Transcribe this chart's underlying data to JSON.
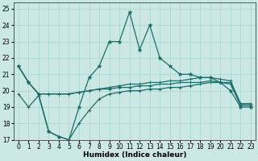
{
  "xlabel": "Humidex (Indice chaleur)",
  "bg_color": "#cce8e5",
  "grid_color": "#aad8d3",
  "line_color": "#1a6e6a",
  "xlim": [
    -0.5,
    23.5
  ],
  "ylim": [
    17,
    25.4
  ],
  "yticks": [
    17,
    18,
    19,
    20,
    21,
    22,
    23,
    24,
    25
  ],
  "xticks": [
    0,
    1,
    2,
    3,
    4,
    5,
    6,
    7,
    8,
    9,
    10,
    11,
    12,
    13,
    14,
    15,
    16,
    17,
    18,
    19,
    20,
    21,
    22,
    23
  ],
  "line_wave_y": [
    21.5,
    20.5,
    19.8,
    17.5,
    17.2,
    17.0,
    19.0,
    20.8,
    21.5,
    23.0,
    23.0,
    24.8,
    22.5,
    24.0,
    22.0,
    21.5,
    21.0,
    21.0,
    20.8,
    20.8,
    20.5,
    20.0,
    19.0,
    19.0
  ],
  "line_upper_y": [
    21.5,
    20.5,
    19.8,
    19.8,
    19.8,
    19.8,
    19.9,
    20.0,
    20.1,
    20.2,
    20.3,
    20.4,
    20.4,
    20.5,
    20.5,
    20.6,
    20.6,
    20.7,
    20.8,
    20.8,
    20.7,
    20.6,
    19.2,
    19.2
  ],
  "line_mid_y": [
    21.5,
    20.5,
    19.8,
    19.8,
    19.8,
    19.8,
    19.9,
    20.0,
    20.1,
    20.1,
    20.2,
    20.2,
    20.3,
    20.3,
    20.4,
    20.4,
    20.5,
    20.5,
    20.5,
    20.6,
    20.5,
    20.4,
    19.1,
    19.1
  ],
  "line_lower_y": [
    19.8,
    19.0,
    19.7,
    17.5,
    17.2,
    17.0,
    18.0,
    18.8,
    19.5,
    19.8,
    19.9,
    20.0,
    20.0,
    20.1,
    20.1,
    20.2,
    20.2,
    20.3,
    20.4,
    20.5,
    20.5,
    20.5,
    19.2,
    19.2
  ]
}
